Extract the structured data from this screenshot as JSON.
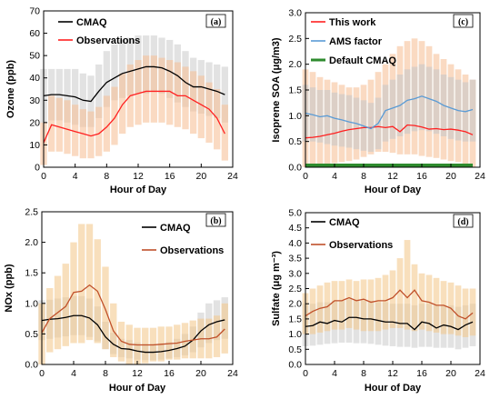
{
  "chart_data": [
    {
      "type": "line",
      "panel_label": "(a)",
      "xlabel": "Hour of Day",
      "ylabel": "Ozone (ppb)",
      "xlim": [
        0,
        24
      ],
      "ylim": [
        0,
        70
      ],
      "xticks": [
        0,
        4,
        8,
        12,
        16,
        20,
        24
      ],
      "yticks": [
        0,
        10,
        20,
        30,
        40,
        50,
        60,
        70
      ],
      "legend_position": "top-left",
      "x": [
        0,
        1,
        2,
        3,
        4,
        5,
        6,
        7,
        8,
        9,
        10,
        11,
        12,
        13,
        14,
        15,
        16,
        17,
        18,
        19,
        20,
        21,
        22,
        23
      ],
      "series": [
        {
          "name": "CMAQ",
          "color": "#000000",
          "values": [
            32,
            32.5,
            32.5,
            32,
            31.5,
            30,
            29.5,
            34,
            38,
            40,
            42,
            43,
            44,
            45,
            45,
            44.5,
            43,
            41,
            38,
            36,
            36,
            35,
            34,
            32.5
          ],
          "band_low": [
            20,
            21,
            21,
            20,
            19,
            18,
            18,
            22,
            27,
            30,
            31,
            32,
            33,
            33,
            34,
            33,
            31,
            29,
            27,
            25,
            24,
            23,
            22,
            20
          ],
          "band_high": [
            44,
            44,
            44,
            44,
            44,
            42,
            41,
            46,
            52,
            55,
            57,
            58,
            59,
            59,
            59,
            58,
            57,
            55,
            52,
            49,
            48,
            47,
            46,
            45
          ],
          "band_color": "#cfcfcf"
        },
        {
          "name": "Observations",
          "color": "#ff2020",
          "values": [
            11,
            19,
            18,
            17,
            16,
            15,
            14,
            15,
            18,
            22,
            28,
            32,
            33,
            34,
            34,
            34,
            34,
            32,
            32,
            30,
            28,
            26,
            22,
            15
          ],
          "band_low": [
            1,
            7,
            7,
            6,
            5,
            4,
            4,
            5,
            7,
            10,
            15,
            18,
            19,
            20,
            20,
            20,
            19,
            18,
            17,
            15,
            13,
            11,
            8,
            3
          ],
          "band_high": [
            20,
            32,
            31,
            30,
            28,
            26,
            25,
            27,
            32,
            36,
            42,
            46,
            48,
            50,
            50,
            49,
            48,
            47,
            45,
            43,
            41,
            38,
            35,
            28
          ],
          "band_color": "#f6c19a"
        }
      ]
    },
    {
      "type": "line",
      "panel_label": "(c)",
      "xlabel": "Hour of Day",
      "ylabel": "Isoprene SOA (μg/m3)",
      "xlim": [
        0,
        24
      ],
      "ylim": [
        0,
        3.0
      ],
      "xticks": [
        0,
        4,
        8,
        12,
        16,
        20,
        24
      ],
      "yticks": [
        0.0,
        0.5,
        1.0,
        1.5,
        2.0,
        2.5,
        3.0
      ],
      "legend_position": "top-left",
      "x": [
        0,
        1,
        2,
        3,
        4,
        5,
        6,
        7,
        8,
        9,
        10,
        11,
        12,
        13,
        14,
        15,
        16,
        17,
        18,
        19,
        20,
        21,
        22,
        23
      ],
      "series": [
        {
          "name": "This work",
          "color": "#ff2020",
          "values": [
            0.57,
            0.58,
            0.6,
            0.63,
            0.66,
            0.7,
            0.73,
            0.75,
            0.77,
            0.77,
            0.79,
            0.77,
            0.79,
            0.69,
            0.82,
            0.81,
            0.78,
            0.74,
            0.75,
            0.73,
            0.74,
            0.72,
            0.69,
            0.63
          ],
          "band_low": [
            0.0,
            0.0,
            0.0,
            0.05,
            0.08,
            0.1,
            0.12,
            0.15,
            0.2,
            0.25,
            0.3,
            0.3,
            0.28,
            0.25,
            0.25,
            0.25,
            0.22,
            0.2,
            0.18,
            0.15,
            0.12,
            0.1,
            0.05,
            0.0
          ],
          "band_high": [
            1.9,
            1.85,
            1.75,
            1.7,
            1.65,
            1.6,
            1.55,
            1.55,
            1.6,
            1.7,
            1.85,
            2.0,
            2.2,
            2.35,
            2.45,
            2.5,
            2.45,
            2.35,
            2.2,
            2.1,
            2.0,
            1.9,
            1.8,
            1.7
          ],
          "band_color": "#f6c19a"
        },
        {
          "name": "AMS factor",
          "color": "#5a9bd5",
          "values": [
            1.05,
            1.02,
            0.98,
            1.0,
            0.95,
            0.92,
            0.88,
            0.85,
            0.8,
            0.75,
            0.85,
            1.1,
            1.15,
            1.2,
            1.3,
            1.33,
            1.38,
            1.33,
            1.28,
            1.2,
            1.15,
            1.1,
            1.08,
            1.12
          ],
          "band_low": [
            0.5,
            0.5,
            0.48,
            0.45,
            0.42,
            0.4,
            0.38,
            0.35,
            0.32,
            0.3,
            0.35,
            0.5,
            0.55,
            0.6,
            0.65,
            0.7,
            0.72,
            0.7,
            0.65,
            0.6,
            0.55,
            0.52,
            0.5,
            0.5
          ],
          "band_high": [
            1.6,
            1.55,
            1.5,
            1.5,
            1.45,
            1.42,
            1.4,
            1.35,
            1.3,
            1.25,
            1.35,
            1.6,
            1.7,
            1.8,
            1.9,
            1.95,
            2.0,
            1.95,
            1.9,
            1.8,
            1.75,
            1.7,
            1.65,
            1.7
          ],
          "band_color": "#c8c8c8"
        },
        {
          "name": "Default CMAQ",
          "color": "#2e8b2e",
          "values": [
            0.04,
            0.04,
            0.04,
            0.04,
            0.04,
            0.04,
            0.04,
            0.04,
            0.04,
            0.04,
            0.04,
            0.04,
            0.04,
            0.04,
            0.04,
            0.04,
            0.04,
            0.04,
            0.04,
            0.04,
            0.04,
            0.04,
            0.04,
            0.04
          ]
        }
      ]
    },
    {
      "type": "line",
      "panel_label": "(b)",
      "xlabel": "Hour of Day",
      "ylabel": "NOx (ppb)",
      "xlim": [
        0,
        24
      ],
      "ylim": [
        0,
        2.5
      ],
      "xticks": [
        0,
        4,
        8,
        12,
        16,
        20,
        24
      ],
      "yticks": [
        0.0,
        0.5,
        1.0,
        1.5,
        2.0,
        2.5
      ],
      "legend_position": "top-right",
      "x": [
        0,
        1,
        2,
        3,
        4,
        5,
        6,
        7,
        8,
        9,
        10,
        11,
        12,
        13,
        14,
        15,
        16,
        17,
        18,
        19,
        20,
        21,
        22,
        23
      ],
      "series": [
        {
          "name": "CMAQ",
          "color": "#000000",
          "values": [
            0.72,
            0.74,
            0.75,
            0.77,
            0.8,
            0.8,
            0.76,
            0.65,
            0.45,
            0.33,
            0.26,
            0.25,
            0.22,
            0.2,
            0.2,
            0.21,
            0.23,
            0.26,
            0.3,
            0.4,
            0.55,
            0.65,
            0.7,
            0.73
          ],
          "band_low": [
            0.4,
            0.42,
            0.44,
            0.46,
            0.48,
            0.48,
            0.45,
            0.38,
            0.25,
            0.17,
            0.12,
            0.1,
            0.08,
            0.07,
            0.07,
            0.08,
            0.1,
            0.12,
            0.15,
            0.2,
            0.28,
            0.35,
            0.4,
            0.42
          ],
          "band_high": [
            1.05,
            1.06,
            1.08,
            1.1,
            1.12,
            1.12,
            1.08,
            0.95,
            0.7,
            0.52,
            0.42,
            0.4,
            0.36,
            0.34,
            0.34,
            0.35,
            0.37,
            0.42,
            0.5,
            0.62,
            0.85,
            1.0,
            1.05,
            1.1
          ],
          "band_color": "#cfcfcf"
        },
        {
          "name": "Observations",
          "color": "#c0502a",
          "values": [
            0.52,
            0.75,
            0.85,
            0.95,
            1.18,
            1.2,
            1.3,
            1.2,
            0.9,
            0.55,
            0.38,
            0.33,
            0.32,
            0.32,
            0.32,
            0.33,
            0.34,
            0.35,
            0.38,
            0.4,
            0.42,
            0.42,
            0.45,
            0.58
          ],
          "band_low": [
            0.0,
            0.2,
            0.25,
            0.3,
            0.35,
            0.35,
            0.4,
            0.35,
            0.25,
            0.12,
            0.05,
            0.0,
            0.0,
            0.02,
            0.05,
            0.05,
            0.08,
            0.08,
            0.1,
            0.1,
            0.1,
            0.1,
            0.12,
            0.18
          ],
          "band_high": [
            1.0,
            1.25,
            1.45,
            1.65,
            2.0,
            2.3,
            2.3,
            2.05,
            1.6,
            1.0,
            0.7,
            0.65,
            0.6,
            0.6,
            0.6,
            0.62,
            0.62,
            0.65,
            0.68,
            0.72,
            0.75,
            0.75,
            0.8,
            1.0
          ],
          "band_color": "#f3c98f"
        }
      ]
    },
    {
      "type": "line",
      "panel_label": "(d)",
      "xlabel": "Hour of Day",
      "ylabel": "Sulfate (μg m⁻³)",
      "xlim": [
        0,
        24
      ],
      "ylim": [
        0,
        5.0
      ],
      "xticks": [
        0,
        4,
        8,
        12,
        16,
        20,
        24
      ],
      "yticks": [
        0.0,
        0.5,
        1.0,
        1.5,
        2.0,
        2.5,
        3.0,
        3.5,
        4.0,
        4.5,
        5.0
      ],
      "legend_position": "top-left",
      "x": [
        0,
        1,
        2,
        3,
        4,
        5,
        6,
        7,
        8,
        9,
        10,
        11,
        12,
        13,
        14,
        15,
        16,
        17,
        18,
        19,
        20,
        21,
        22,
        23
      ],
      "series": [
        {
          "name": "CMAQ",
          "color": "#000000",
          "values": [
            1.25,
            1.28,
            1.4,
            1.35,
            1.45,
            1.4,
            1.55,
            1.55,
            1.5,
            1.5,
            1.45,
            1.4,
            1.4,
            1.35,
            1.35,
            1.15,
            1.4,
            1.35,
            1.2,
            1.3,
            1.25,
            1.15,
            1.3,
            1.4
          ],
          "band_low": [
            0.6,
            0.62,
            0.65,
            0.68,
            0.7,
            0.72,
            0.72,
            0.7,
            0.7,
            0.68,
            0.65,
            0.62,
            0.6,
            0.58,
            0.58,
            0.55,
            0.58,
            0.58,
            0.55,
            0.55,
            0.55,
            0.5,
            0.55,
            0.6
          ],
          "band_high": [
            2.0,
            2.0,
            2.05,
            2.05,
            2.1,
            2.1,
            2.15,
            2.15,
            2.1,
            2.1,
            2.05,
            2.05,
            2.0,
            2.0,
            2.0,
            1.95,
            2.0,
            2.0,
            1.95,
            1.95,
            1.95,
            1.9,
            1.95,
            2.0
          ],
          "band_color": "#cfcfcf"
        },
        {
          "name": "Observations",
          "color": "#c0502a",
          "values": [
            1.6,
            1.75,
            1.85,
            1.9,
            2.1,
            2.1,
            2.2,
            2.1,
            2.15,
            2.05,
            2.1,
            2.1,
            2.2,
            2.45,
            2.2,
            2.45,
            2.1,
            2.05,
            1.95,
            1.95,
            1.85,
            1.6,
            1.5,
            1.7
          ],
          "band_low": [
            1.0,
            1.0,
            1.05,
            1.1,
            1.15,
            1.15,
            1.2,
            1.15,
            1.1,
            1.1,
            1.1,
            1.15,
            1.2,
            1.2,
            1.15,
            1.1,
            1.15,
            1.1,
            1.05,
            1.0,
            1.0,
            0.95,
            0.9,
            0.95
          ],
          "band_high": [
            2.35,
            2.5,
            2.6,
            2.7,
            2.75,
            2.75,
            2.8,
            2.75,
            2.8,
            2.8,
            2.85,
            2.95,
            3.1,
            3.5,
            4.1,
            3.3,
            3.0,
            2.95,
            2.85,
            2.75,
            2.7,
            2.6,
            2.5,
            2.5
          ],
          "band_color": "#f3c98f"
        }
      ]
    }
  ]
}
